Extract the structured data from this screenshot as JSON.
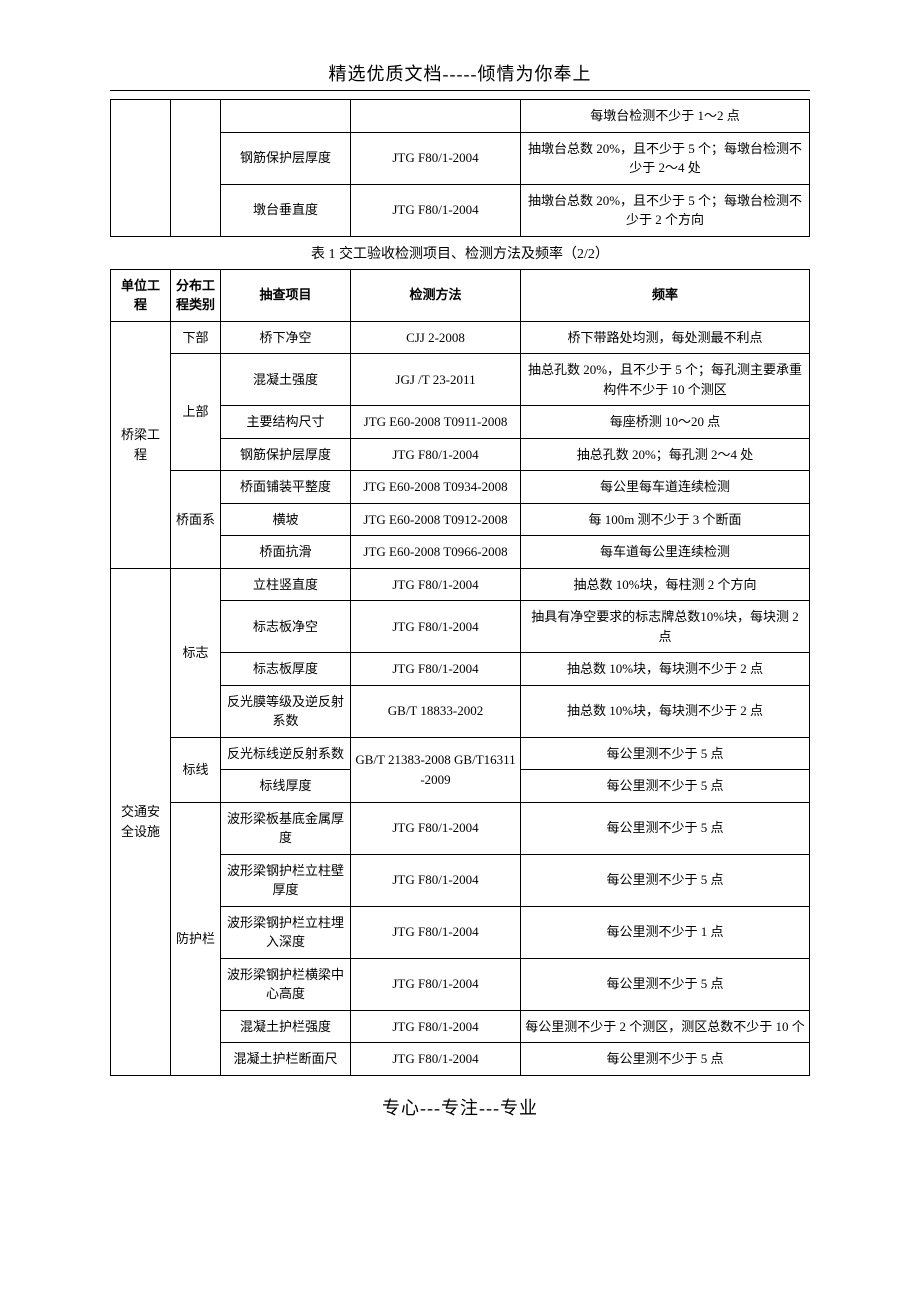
{
  "header_text": "精选优质文档-----倾情为你奉上",
  "footer_text": "专心---专注---专业",
  "table1_caption": "表 1  交工验收检测项目、检测方法及频率（2/2）",
  "columns": {
    "unit": "单位工程",
    "sub": "分布工程类别",
    "item": "抽查项目",
    "method": "检测方法",
    "freq": "频率"
  },
  "top_rows": [
    {
      "item": "",
      "method": "",
      "freq": "每墩台检测不少于 1～2 点"
    },
    {
      "item": "钢筋保护层厚度",
      "method": "JTG F80/1-2004",
      "freq": "抽墩台总数 20%，且不少于 5 个；每墩台检测不少于 2～4 处"
    },
    {
      "item": "墩台垂直度",
      "method": "JTG F80/1-2004",
      "freq": "抽墩台总数 20%，且不少于 5 个；每墩台检测不少于 2 个方向"
    }
  ],
  "bridge": {
    "unit": "桥梁工程",
    "groups": [
      {
        "sub": "下部",
        "rows": [
          {
            "item": "桥下净空",
            "method": "CJJ 2-2008",
            "freq": "桥下带路处均测，每处测最不利点"
          }
        ]
      },
      {
        "sub": "上部",
        "rows": [
          {
            "item": "混凝土强度",
            "method": "JGJ /T 23-2011",
            "freq": "抽总孔数 20%，且不少于 5 个；每孔测主要承重构件不少于 10 个测区"
          },
          {
            "item": "主要结构尺寸",
            "method": "JTG E60-2008 T0911-2008",
            "freq": "每座桥测 10～20 点"
          },
          {
            "item": "钢筋保护层厚度",
            "method": "JTG F80/1-2004",
            "freq": "抽总孔数 20%；每孔测 2～4 处"
          }
        ]
      },
      {
        "sub": "桥面系",
        "rows": [
          {
            "item": "桥面铺装平整度",
            "method": "JTG E60-2008 T0934-2008",
            "freq": "每公里每车道连续检测"
          },
          {
            "item": "横坡",
            "method": "JTG E60-2008 T0912-2008",
            "freq": "每 100m 测不少于 3 个断面"
          },
          {
            "item": "桥面抗滑",
            "method": "JTG E60-2008 T0966-2008",
            "freq": "每车道每公里连续检测"
          }
        ]
      }
    ]
  },
  "safety": {
    "unit": "交通安全设施",
    "groups": [
      {
        "sub": "标志",
        "rows": [
          {
            "item": "立柱竖直度",
            "method": "JTG F80/1-2004",
            "freq": "抽总数 10%块，每柱测 2 个方向"
          },
          {
            "item": "标志板净空",
            "method": "JTG F80/1-2004",
            "freq": "抽具有净空要求的标志牌总数10%块，每块测 2 点"
          },
          {
            "item": "标志板厚度",
            "method": "JTG F80/1-2004",
            "freq": "抽总数 10%块，每块测不少于 2 点"
          },
          {
            "item": "反光膜等级及逆反射系数",
            "method": "GB/T 18833-2002",
            "freq": "抽总数 10%块，每块测不少于 2 点"
          }
        ]
      },
      {
        "sub": "标线",
        "method_merged": "GB/T 21383-2008 GB/T16311-2009",
        "rows": [
          {
            "item": "反光标线逆反射系数",
            "freq": "每公里测不少于 5 点"
          },
          {
            "item": "标线厚度",
            "freq": "每公里测不少于 5 点"
          }
        ]
      },
      {
        "sub": "防护栏",
        "rows": [
          {
            "item": "波形梁板基底金属厚度",
            "method": "JTG F80/1-2004",
            "freq": "每公里测不少于 5 点"
          },
          {
            "item": "波形梁钢护栏立柱壁厚度",
            "method": "JTG F80/1-2004",
            "freq": "每公里测不少于 5 点"
          },
          {
            "item": "波形梁钢护栏立柱埋入深度",
            "method": "JTG F80/1-2004",
            "freq": "每公里测不少于 1 点"
          },
          {
            "item": "波形梁钢护栏横梁中心高度",
            "method": "JTG F80/1-2004",
            "freq": "每公里测不少于 5 点"
          },
          {
            "item": "混凝土护栏强度",
            "method": "JTG F80/1-2004",
            "freq": "每公里测不少于 2 个测区，测区总数不少于 10 个"
          },
          {
            "item": "混凝土护栏断面尺",
            "method": "JTG F80/1-2004",
            "freq": "每公里测不少于 5 点"
          }
        ]
      }
    ]
  }
}
